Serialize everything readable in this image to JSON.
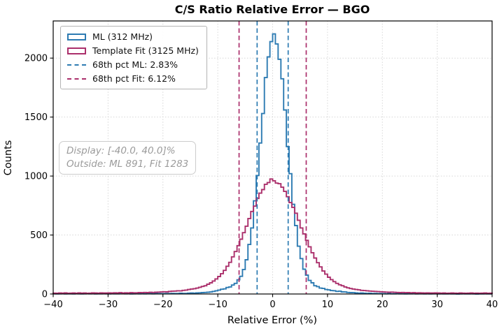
{
  "title": "C/S Ratio Relative Error — BGO",
  "axes": {
    "xlabel": "Relative Error (%)",
    "ylabel": "Counts"
  },
  "colors": {
    "ml": "#2d7bb2",
    "fit": "#ab2f6b",
    "grid": "#d6d6d6",
    "spine": "#000000",
    "annotation_text": "#9b9b9b"
  },
  "legend": {
    "items": [
      {
        "swatch": "rect",
        "color_key": "ml",
        "label": "ML (312 MHz)"
      },
      {
        "swatch": "rect",
        "color_key": "fit",
        "label": "Template Fit (3125 MHz)"
      },
      {
        "swatch": "dash",
        "color_key": "ml",
        "label": "68th pct ML: 2.83%"
      },
      {
        "swatch": "dash",
        "color_key": "fit",
        "label": "68th pct Fit: 6.12%"
      }
    ]
  },
  "annotation": {
    "line1": "Display: [-40.0, 40.0]%",
    "line2": "Outside: ML 891, Fit 1283"
  },
  "chart_data": {
    "type": "histogram-step",
    "title": "C/S Ratio Relative Error — BGO",
    "xlabel": "Relative Error (%)",
    "ylabel": "Counts",
    "xlim": [
      -40,
      40
    ],
    "ylim": [
      0,
      2315
    ],
    "x_ticks": [
      -40,
      -30,
      -20,
      -10,
      0,
      10,
      20,
      30,
      40
    ],
    "y_ticks": [
      0,
      500,
      1000,
      1500,
      2000
    ],
    "grid": true,
    "legend_position": "upper left",
    "bin_start": -40,
    "bin_width": 0.5,
    "series": [
      {
        "name": "ML (312 MHz)",
        "color_key": "ml",
        "peak": 2205,
        "pct68": 2.83,
        "counts": [
          2,
          1,
          2,
          3,
          1,
          2,
          2,
          1,
          3,
          2,
          1,
          2,
          4,
          2,
          3,
          1,
          2,
          2,
          3,
          2,
          1,
          3,
          2,
          2,
          4,
          3,
          2,
          3,
          1,
          2,
          3,
          2,
          4,
          2,
          3,
          3,
          2,
          4,
          3,
          3,
          3,
          4,
          3,
          5,
          4,
          4,
          6,
          5,
          5,
          7,
          8,
          7,
          9,
          10,
          12,
          13,
          15,
          17,
          22,
          27,
          33,
          40,
          43,
          55,
          60,
          76,
          90,
          120,
          150,
          208,
          290,
          420,
          560,
          790,
          1005,
          1280,
          1530,
          1835,
          2010,
          2140,
          2205,
          2120,
          1990,
          1825,
          1560,
          1250,
          1020,
          760,
          580,
          405,
          300,
          210,
          160,
          115,
          95,
          70,
          63,
          50,
          47,
          38,
          35,
          29,
          28,
          22,
          24,
          18,
          17,
          13,
          12,
          11,
          9,
          7,
          8,
          6,
          5,
          6,
          4,
          5,
          3,
          4,
          3,
          2,
          3,
          2,
          2,
          3,
          2,
          2,
          1,
          2,
          2,
          3,
          1,
          2,
          2,
          1,
          2,
          1,
          2,
          2,
          1,
          2,
          1,
          1,
          2,
          1,
          1,
          0,
          1,
          2,
          1,
          1,
          2,
          1,
          0,
          1,
          1,
          2,
          1,
          1
        ]
      },
      {
        "name": "Template Fit (3125 MHz)",
        "color_key": "fit",
        "peak": 975,
        "pct68": 6.12,
        "counts": [
          7,
          6,
          8,
          7,
          9,
          6,
          7,
          8,
          6,
          9,
          7,
          8,
          6,
          7,
          9,
          8,
          7,
          9,
          8,
          8,
          9,
          8,
          10,
          9,
          11,
          8,
          10,
          9,
          11,
          10,
          10,
          12,
          11,
          13,
          12,
          14,
          13,
          15,
          16,
          17,
          19,
          18,
          22,
          24,
          25,
          27,
          26,
          31,
          33,
          38,
          42,
          45,
          50,
          57,
          64,
          70,
          83,
          95,
          110,
          128,
          148,
          172,
          200,
          235,
          268,
          315,
          360,
          410,
          465,
          520,
          575,
          640,
          700,
          745,
          810,
          855,
          885,
          930,
          945,
          975,
          960,
          940,
          935,
          905,
          870,
          825,
          775,
          735,
          685,
          625,
          560,
          510,
          455,
          400,
          350,
          305,
          265,
          230,
          195,
          168,
          142,
          122,
          105,
          90,
          78,
          70,
          60,
          52,
          46,
          42,
          38,
          35,
          31,
          29,
          27,
          25,
          23,
          22,
          20,
          19,
          17,
          16,
          15,
          16,
          14,
          13,
          12,
          13,
          11,
          12,
          10,
          11,
          9,
          10,
          9,
          8,
          9,
          8,
          8,
          9,
          8,
          7,
          8,
          6,
          7,
          8,
          7,
          6,
          8,
          7,
          6,
          7,
          8,
          6,
          7,
          6,
          7,
          8,
          6,
          7
        ]
      }
    ],
    "vlines": [
      {
        "x": -2.83,
        "color_key": "ml"
      },
      {
        "x": 2.83,
        "color_key": "ml"
      },
      {
        "x": -6.12,
        "color_key": "fit"
      },
      {
        "x": 6.12,
        "color_key": "fit"
      }
    ]
  }
}
